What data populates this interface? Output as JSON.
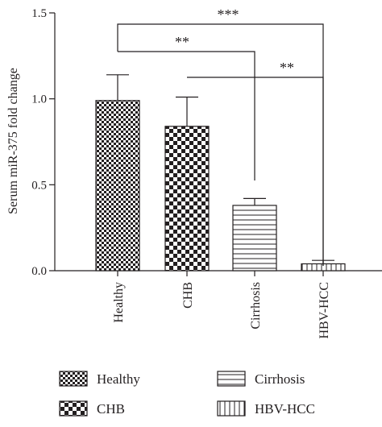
{
  "chart_data": {
    "type": "bar",
    "ylabel": "Serum miR-375 fold change",
    "xlabel": "",
    "title": "",
    "ylim": [
      0,
      1.5
    ],
    "yticks": [
      0.0,
      0.5,
      1.0,
      1.5
    ],
    "ytick_labels": [
      "0.0",
      "0.5",
      "1.0",
      "1.5"
    ],
    "grid": false,
    "legend_position": "bottom",
    "categories": [
      "Healthy",
      "CHB",
      "Cirrhosis",
      "HBV-HCC"
    ],
    "values": [
      0.99,
      0.84,
      0.38,
      0.04
    ],
    "error": [
      0.15,
      0.17,
      0.04,
      0.02
    ],
    "patterns": [
      "small-checker",
      "large-checker",
      "horizontal-lines",
      "vertical-lines"
    ],
    "legend": [
      "Healthy",
      "CHB",
      "Cirrhosis",
      "HBV-HCC"
    ],
    "significance": [
      {
        "from": "Healthy",
        "to": "HBV-HCC",
        "label": "***"
      },
      {
        "from": "Healthy",
        "to": "Cirrhosis",
        "label": "**"
      },
      {
        "from": "CHB",
        "to": "HBV-HCC",
        "label": "**"
      }
    ],
    "colors": {
      "ink": "#231f20",
      "background": "#ffffff"
    }
  }
}
